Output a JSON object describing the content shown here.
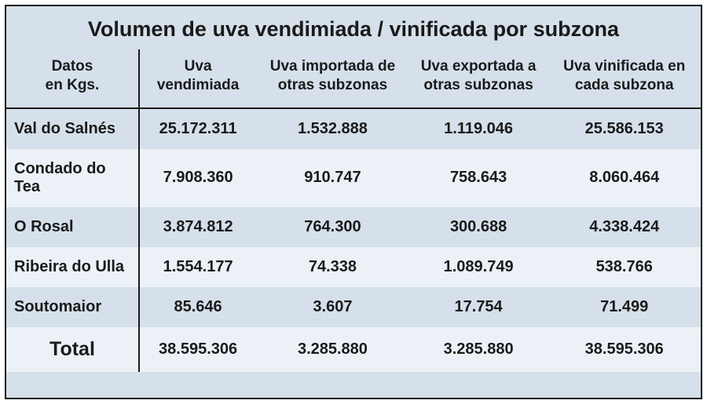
{
  "table": {
    "title": "Volumen de uva vendimiada / vinificada por subzona",
    "title_fontsize": 27,
    "header_fontsize": 19,
    "cell_fontsize": 20,
    "total_label_fontsize": 25,
    "background_color": "#d5e0ea",
    "stripe_color": "#ebf1f6",
    "border_color": "#1a1a1a",
    "text_color": "#1a1a1a",
    "column_widths_pct": [
      19,
      17,
      22,
      20,
      22
    ],
    "columns": [
      "Datos\nen Kgs.",
      "Uva vendimiada",
      "Uva importada de otras subzonas",
      "Uva exportada a otras subzonas",
      "Uva vinificada en cada subzona"
    ],
    "rows": [
      {
        "label": "Val do Salnés",
        "values": [
          "25.172.311",
          "1.532.888",
          "1.119.046",
          "25.586.153"
        ],
        "stripe": false
      },
      {
        "label": "Condado do Tea",
        "values": [
          "7.908.360",
          "910.747",
          "758.643",
          "8.060.464"
        ],
        "stripe": true
      },
      {
        "label": "O Rosal",
        "values": [
          "3.874.812",
          "764.300",
          "300.688",
          "4.338.424"
        ],
        "stripe": false
      },
      {
        "label": "Ribeira do Ulla",
        "values": [
          "1.554.177",
          "74.338",
          "1.089.749",
          "538.766"
        ],
        "stripe": true
      },
      {
        "label": "Soutomaior",
        "values": [
          "85.646",
          "3.607",
          "17.754",
          "71.499"
        ],
        "stripe": false
      }
    ],
    "total": {
      "label": "Total",
      "values": [
        "38.595.306",
        "3.285.880",
        "3.285.880",
        "38.595.306"
      ],
      "stripe": true
    }
  }
}
